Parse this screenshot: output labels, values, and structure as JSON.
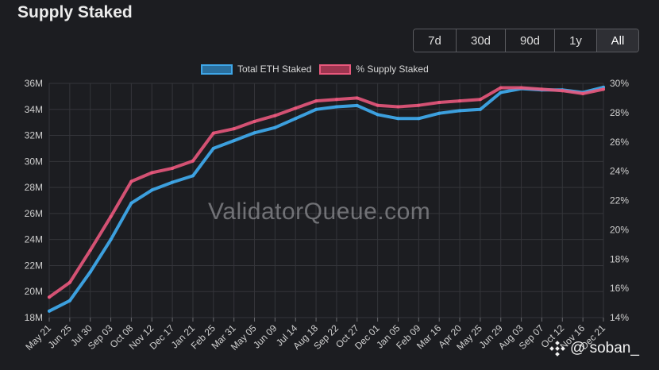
{
  "chart_data": {
    "type": "line",
    "title": "Supply Staked",
    "range_buttons": [
      "7d",
      "30d",
      "90d",
      "1y",
      "All"
    ],
    "active_range": "All",
    "legend_position": "top-center",
    "grid": true,
    "y_left": {
      "ticks": [
        "18M",
        "20M",
        "22M",
        "24M",
        "26M",
        "28M",
        "30M",
        "32M",
        "34M",
        "36M"
      ],
      "range": [
        18,
        36
      ]
    },
    "y_right": {
      "ticks": [
        "14%",
        "16%",
        "18%",
        "20%",
        "22%",
        "24%",
        "26%",
        "28%",
        "30%"
      ],
      "range": [
        14,
        30
      ]
    },
    "x_ticks": [
      "May 21",
      "Jun 25",
      "Jul 30",
      "Sep 03",
      "Oct 08",
      "Nov 12",
      "Dec 17",
      "Jan 21",
      "Feb 25",
      "Mar 31",
      "May 05",
      "Jun 09",
      "Jul 14",
      "Aug 18",
      "Sep 22",
      "Oct 27",
      "Dec 01",
      "Jan 05",
      "Feb 09",
      "Mar 16",
      "Apr 20",
      "May 25",
      "Jun 29",
      "Aug 03",
      "Sep 07",
      "Oct 12",
      "Nov 16",
      "Dec 21"
    ],
    "series": [
      {
        "name": "Total ETH Staked",
        "color": "#3ea6e8",
        "axis": "left",
        "values": [
          18.5,
          19.3,
          21.5,
          24.0,
          26.8,
          27.8,
          28.4,
          28.9,
          31.0,
          31.6,
          32.2,
          32.6,
          33.3,
          34.0,
          34.2,
          34.3,
          33.6,
          33.3,
          33.3,
          33.7,
          33.9,
          34.0,
          35.3,
          35.6,
          35.5,
          35.5,
          35.3,
          35.7
        ]
      },
      {
        "name": "% Supply Staked",
        "color": "#e8587c",
        "axis": "right",
        "values": [
          15.4,
          16.4,
          18.6,
          20.9,
          23.3,
          23.9,
          24.2,
          24.7,
          26.6,
          26.9,
          27.4,
          27.8,
          28.3,
          28.8,
          28.9,
          29.0,
          28.5,
          28.4,
          28.5,
          28.7,
          28.8,
          28.9,
          29.7,
          29.7,
          29.6,
          29.5,
          29.3,
          29.6
        ]
      }
    ]
  },
  "watermark": "ValidatorQueue.com",
  "credit": "@ soban_",
  "colors": {
    "background": "#1c1d21",
    "grid": "#34353a",
    "blue": "#3ea6e8",
    "pink": "#e8587c"
  }
}
